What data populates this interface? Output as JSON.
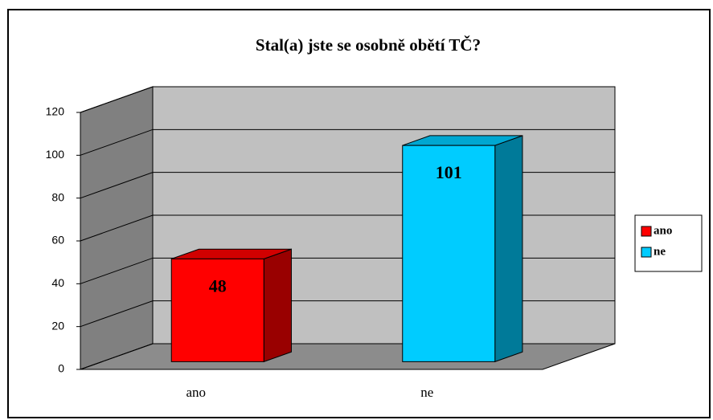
{
  "chart_data": {
    "type": "bar3d",
    "title": "Stal(a) jste se osobně obětí TČ?",
    "categories": [
      "ano",
      "ne"
    ],
    "values": [
      48,
      101
    ],
    "colors": [
      "#ff0000",
      "#00ccff"
    ],
    "ylim": [
      0,
      120
    ],
    "yticks": [
      0,
      20,
      40,
      60,
      80,
      100,
      120
    ],
    "grid": true,
    "legend": "right",
    "data_labels": true
  }
}
